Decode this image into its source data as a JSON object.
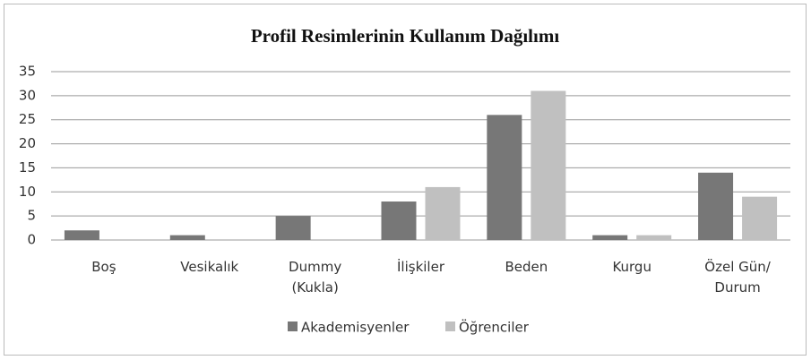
{
  "chart_data": {
    "type": "bar",
    "title": "Profil Resimlerinin Kullanım Dağılımı",
    "categories": [
      [
        "Boş"
      ],
      [
        "Vesikalık"
      ],
      [
        "Dummy",
        "(Kukla)"
      ],
      [
        "İlişkiler"
      ],
      [
        "Beden"
      ],
      [
        "Kurgu"
      ],
      [
        "Özel Gün/",
        "Durum"
      ]
    ],
    "series": [
      {
        "name": "Akademisyenler",
        "color": "#777777",
        "values": [
          2,
          1,
          5,
          8,
          26,
          1,
          14
        ]
      },
      {
        "name": "Öğrenciler",
        "color": "#c0c0c0",
        "values": [
          0,
          0,
          0,
          11,
          31,
          1,
          9
        ]
      }
    ],
    "ylim": [
      0,
      35
    ],
    "yticks": [
      0,
      5,
      10,
      15,
      20,
      25,
      30,
      35
    ],
    "grid": true,
    "legend": "bottom"
  }
}
